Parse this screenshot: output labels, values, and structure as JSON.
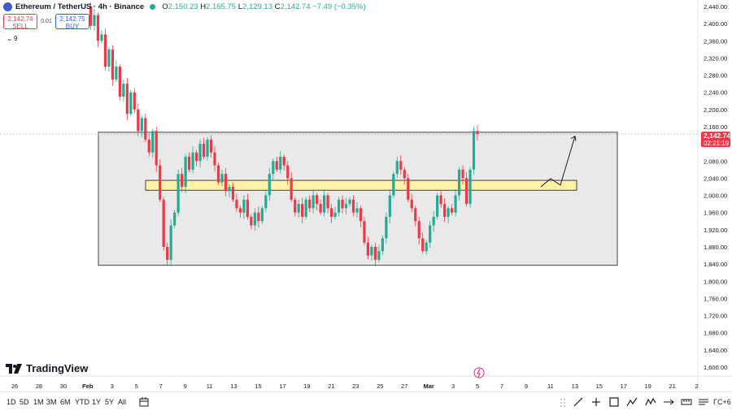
{
  "header": {
    "symbol": "Ethereum / TetherUS · 4h · Binance",
    "o_label": "O",
    "o": "2,150.23",
    "h_label": "H",
    "h": "2,165.75",
    "l_label": "L",
    "l": "2,129.13",
    "c_label": "C",
    "c": "2,142.74",
    "change": "−7.49 (−0.35%)"
  },
  "trade": {
    "sell_price": "2,142.74",
    "sell_label": "SELL",
    "spread": "0.01",
    "buy_price": "2,142.75",
    "buy_label": "BUY"
  },
  "indicator_toggle": "9",
  "logo_text": "TradingView",
  "price_tag": {
    "price": "2,142.74",
    "countdown": "02:21:19"
  },
  "timeframes": [
    "1D",
    "5D",
    "1M",
    "3M",
    "6M",
    "YTD",
    "1Y",
    "5Y",
    "All"
  ],
  "utc_label": "ΓC+6",
  "colors": {
    "up": "#22ab94",
    "down": "#f23645",
    "zone": "#e9e9e9",
    "keylevel": "#fff2a8"
  },
  "chart_data": {
    "type": "candlestick",
    "y_ticks": [
      1600,
      1640,
      1680,
      1720,
      1760,
      1800,
      1840,
      1880,
      1920,
      1960,
      2000,
      2040,
      2080,
      2120,
      2160,
      2200,
      2240,
      2280,
      2320,
      2360,
      2400,
      2440
    ],
    "y_tick_labels": [
      "1,600.00",
      "1,640.00",
      "1,680.00",
      "1,720.00",
      "1,760.00",
      "1,800.00",
      "1,840.00",
      "1,880.00",
      "1,920.00",
      "1,960.00",
      "2,000.00",
      "2,040.00",
      "2,080.00",
      "2,120.00",
      "2,160.00",
      "2,200.00",
      "2,240.00",
      "2,280.00",
      "2,320.00",
      "2,360.00",
      "2,400.00",
      "2,440.00"
    ],
    "x_ticks": [
      "26",
      "28",
      "30",
      "Feb",
      "3",
      "5",
      "7",
      "9",
      "11",
      "13",
      "15",
      "17",
      "19",
      "21",
      "23",
      "25",
      "27",
      "Mar",
      "3",
      "5",
      "7",
      "9",
      "11",
      "13",
      "15",
      "17",
      "19",
      "21",
      "2"
    ],
    "last_price": 2142.74,
    "range_zone": {
      "low": 1837,
      "high": 2147
    },
    "key_level": {
      "low": 2012,
      "high": 2035
    },
    "projection": [
      2020,
      2039,
      2024,
      2138
    ],
    "closes": [
      2440,
      2395,
      2420,
      2360,
      2375,
      2300,
      2340,
      2270,
      2300,
      2230,
      2260,
      2190,
      2240,
      2200,
      2150,
      2180,
      2130,
      2100,
      2150,
      2070,
      1990,
      1880,
      1850,
      1930,
      1960,
      2050,
      2020,
      2090,
      2060,
      2100,
      2080,
      2120,
      2090,
      2130,
      2100,
      2070,
      2030,
      2050,
      2010,
      2020,
      1990,
      1970,
      1960,
      1990,
      1950,
      1930,
      1960,
      1940,
      1970,
      2000,
      2050,
      2080,
      2060,
      2090,
      2070,
      2040,
      1990,
      1960,
      1980,
      1950,
      1990,
      1970,
      2000,
      1980,
      1960,
      2000,
      1970,
      1950,
      1960,
      1990,
      1970,
      1980,
      1990,
      1960,
      1970,
      1940,
      1890,
      1860,
      1880,
      1850,
      1870,
      1900,
      1950,
      2000,
      2050,
      2080,
      2060,
      2040,
      1990,
      1970,
      1940,
      1900,
      1870,
      1890,
      1930,
      1950,
      2000,
      1980,
      1950,
      1970,
      1960,
      2000,
      2060,
      2040,
      1980,
      2060,
      2150,
      2143
    ]
  }
}
